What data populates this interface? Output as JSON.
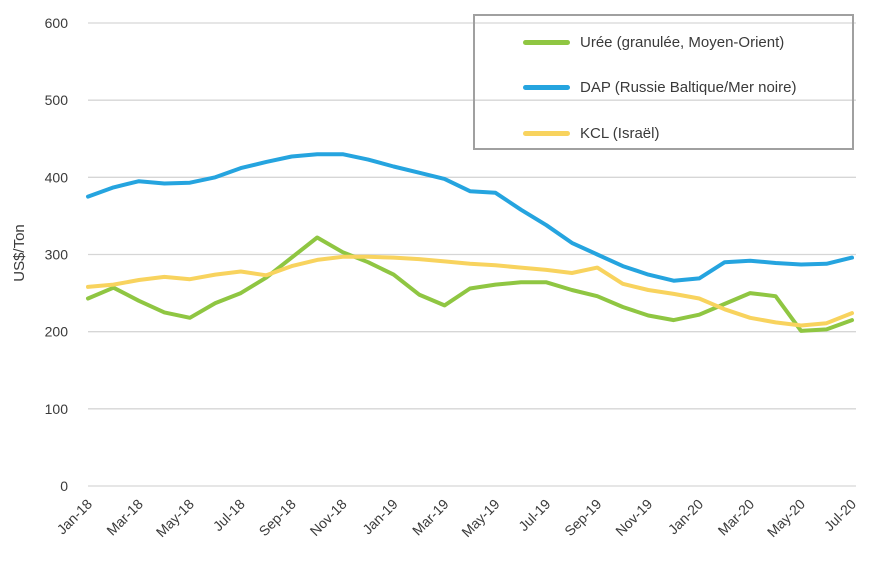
{
  "y_axis": {
    "title": "US$/Ton"
  },
  "legend": [
    {
      "label": "Urée (granulée, Moyen-Orient)",
      "color": "#8fc642"
    },
    {
      "label": "DAP (Russie Baltique/Mer noire)",
      "color": "#25a4df"
    },
    {
      "label": "KCL (Israël)",
      "color": "#f8d35e"
    }
  ],
  "chart_data": {
    "type": "line",
    "title": "",
    "xlabel": "",
    "ylabel": "US$/Ton",
    "ylim": [
      0,
      600
    ],
    "y_tick_step": 100,
    "grid": true,
    "legend_position": "top-right",
    "x": [
      "Jan-18",
      "Feb-18",
      "Mar-18",
      "Apr-18",
      "May-18",
      "Jun-18",
      "Jul-18",
      "Aug-18",
      "Sep-18",
      "Oct-18",
      "Nov-18",
      "Dec-18",
      "Jan-19",
      "Feb-19",
      "Mar-19",
      "Apr-19",
      "May-19",
      "Jun-19",
      "Jul-19",
      "Aug-19",
      "Sep-19",
      "Oct-19",
      "Nov-19",
      "Dec-19",
      "Jan-20",
      "Feb-20",
      "Mar-20",
      "Apr-20",
      "May-20",
      "Jun-20",
      "Jul-20"
    ],
    "x_ticks_shown": [
      "Jan-18",
      "Mar-18",
      "May-18",
      "Jul-18",
      "Sep-18",
      "Nov-18",
      "Jan-19",
      "Mar-19",
      "May-19",
      "Jul-19",
      "Sep-19",
      "Nov-19",
      "Jan-20",
      "Mar-20",
      "May-20",
      "Jul-20"
    ],
    "series": [
      {
        "name": "Urée (granulée, Moyen-Orient)",
        "color": "#8fc642",
        "values": [
          243,
          257,
          240,
          225,
          218,
          237,
          250,
          270,
          296,
          322,
          303,
          290,
          274,
          248,
          234,
          256,
          261,
          264,
          264,
          254,
          246,
          232,
          221,
          215,
          222,
          236,
          250,
          246,
          201,
          203,
          215
        ]
      },
      {
        "name": "DAP (Russie Baltique/Mer noire)",
        "color": "#25a4df",
        "values": [
          375,
          387,
          395,
          392,
          393,
          400,
          412,
          420,
          427,
          430,
          430,
          423,
          414,
          406,
          398,
          382,
          380,
          358,
          338,
          315,
          300,
          285,
          274,
          266,
          269,
          290,
          292,
          289,
          287,
          288,
          296
        ]
      },
      {
        "name": "KCL (Israël)",
        "color": "#f8d35e",
        "values": [
          258,
          261,
          267,
          271,
          268,
          274,
          278,
          273,
          285,
          293,
          297,
          297,
          296,
          294,
          291,
          288,
          286,
          283,
          280,
          276,
          283,
          262,
          254,
          249,
          243,
          229,
          218,
          212,
          208,
          211,
          224
        ]
      }
    ],
    "colors": {
      "gridline": "#d6d6d6",
      "tick_text": "#3a3a3a"
    }
  }
}
